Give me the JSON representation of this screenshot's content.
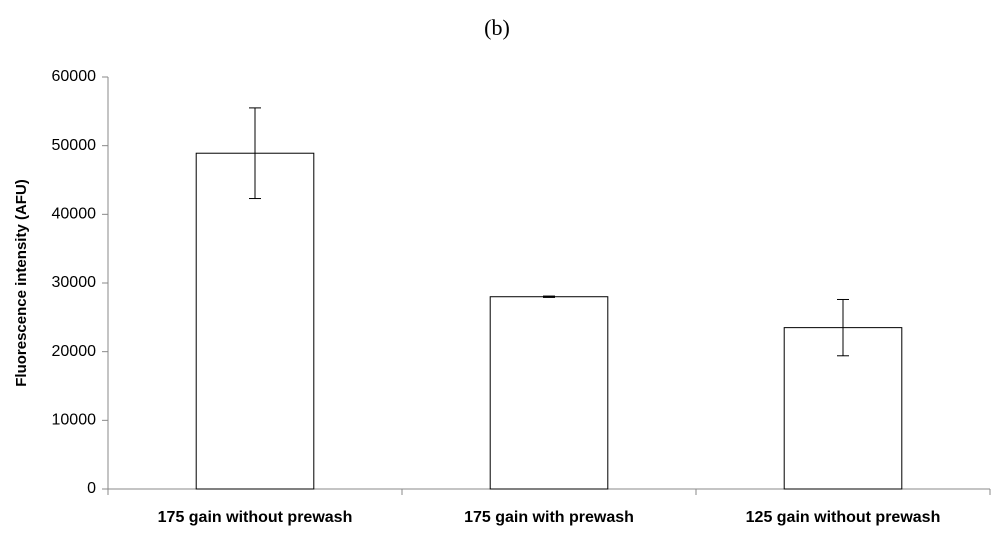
{
  "chart_data": {
    "type": "bar",
    "title": "(b)",
    "y_label": "Fluorescence intensity (AFU)",
    "categories": [
      "175 gain without prewash",
      "175 gain with prewash",
      "125 gain without prewash"
    ],
    "values": [
      48900,
      28000,
      23500
    ],
    "errors": [
      6600,
      100,
      4100
    ],
    "color": "#ffffff",
    "ylim": [
      0,
      60000
    ],
    "yticks": [
      0,
      10000,
      20000,
      30000,
      40000,
      50000,
      60000
    ],
    "grid": false
  }
}
